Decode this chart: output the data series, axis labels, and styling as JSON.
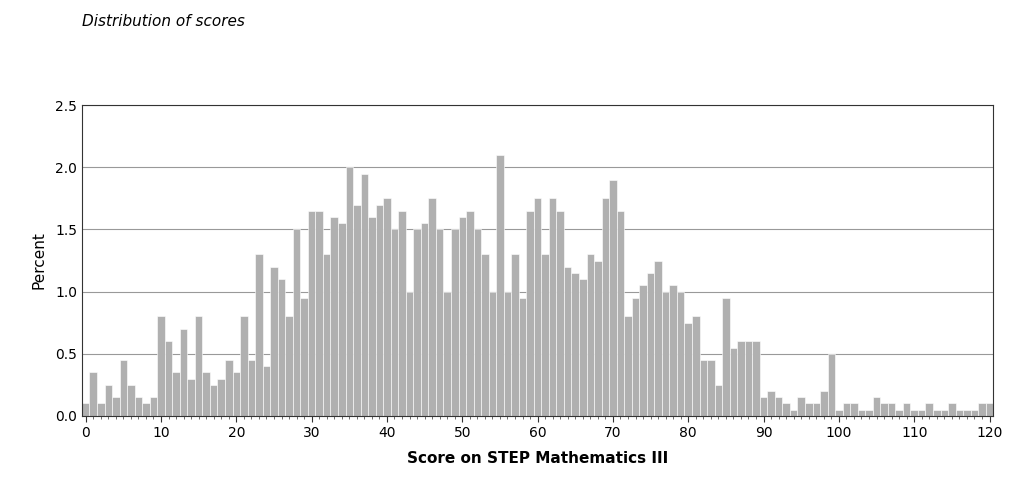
{
  "title": "Distribution of scores",
  "xlabel": "Score on STEP Mathematics III",
  "ylabel": "Percent",
  "xlim": [
    -0.5,
    120.5
  ],
  "ylim": [
    0,
    2.5
  ],
  "yticks": [
    0.0,
    0.5,
    1.0,
    1.5,
    2.0,
    2.5
  ],
  "xticks": [
    0,
    10,
    20,
    30,
    40,
    50,
    60,
    70,
    80,
    90,
    100,
    110,
    120
  ],
  "bar_color": "#b0b0b0",
  "bar_edgecolor": "#ffffff",
  "background_color": "#ffffff",
  "grid_color": "#999999",
  "values": [
    0.1,
    0.35,
    0.1,
    0.25,
    0.15,
    0.45,
    0.25,
    0.15,
    0.1,
    0.15,
    0.8,
    0.6,
    0.35,
    0.7,
    0.3,
    0.8,
    0.35,
    0.25,
    0.3,
    0.45,
    0.35,
    0.8,
    0.45,
    1.3,
    0.4,
    1.2,
    1.1,
    0.8,
    1.5,
    0.95,
    1.65,
    1.65,
    1.3,
    1.6,
    1.55,
    2.0,
    1.7,
    1.95,
    1.6,
    1.7,
    1.75,
    1.5,
    1.65,
    1.0,
    1.5,
    1.55,
    1.75,
    1.5,
    1.0,
    1.5,
    1.6,
    1.65,
    1.5,
    1.3,
    1.0,
    2.1,
    1.0,
    1.3,
    0.95,
    1.65,
    1.75,
    1.3,
    1.75,
    1.65,
    1.2,
    1.15,
    1.1,
    1.3,
    1.25,
    1.75,
    1.9,
    1.65,
    0.8,
    0.95,
    1.05,
    1.15,
    1.25,
    1.0,
    1.05,
    1.0,
    0.75,
    0.8,
    0.45,
    0.45,
    0.25,
    0.95,
    0.55,
    0.6,
    0.6,
    0.6,
    0.15,
    0.2,
    0.15,
    0.1,
    0.05,
    0.15,
    0.1,
    0.1,
    0.2,
    0.5,
    0.05,
    0.1,
    0.1,
    0.05,
    0.05,
    0.15,
    0.1,
    0.1,
    0.05,
    0.1,
    0.05,
    0.05,
    0.1,
    0.05,
    0.05,
    0.1,
    0.05,
    0.05,
    0.05,
    0.1,
    0.1
  ]
}
